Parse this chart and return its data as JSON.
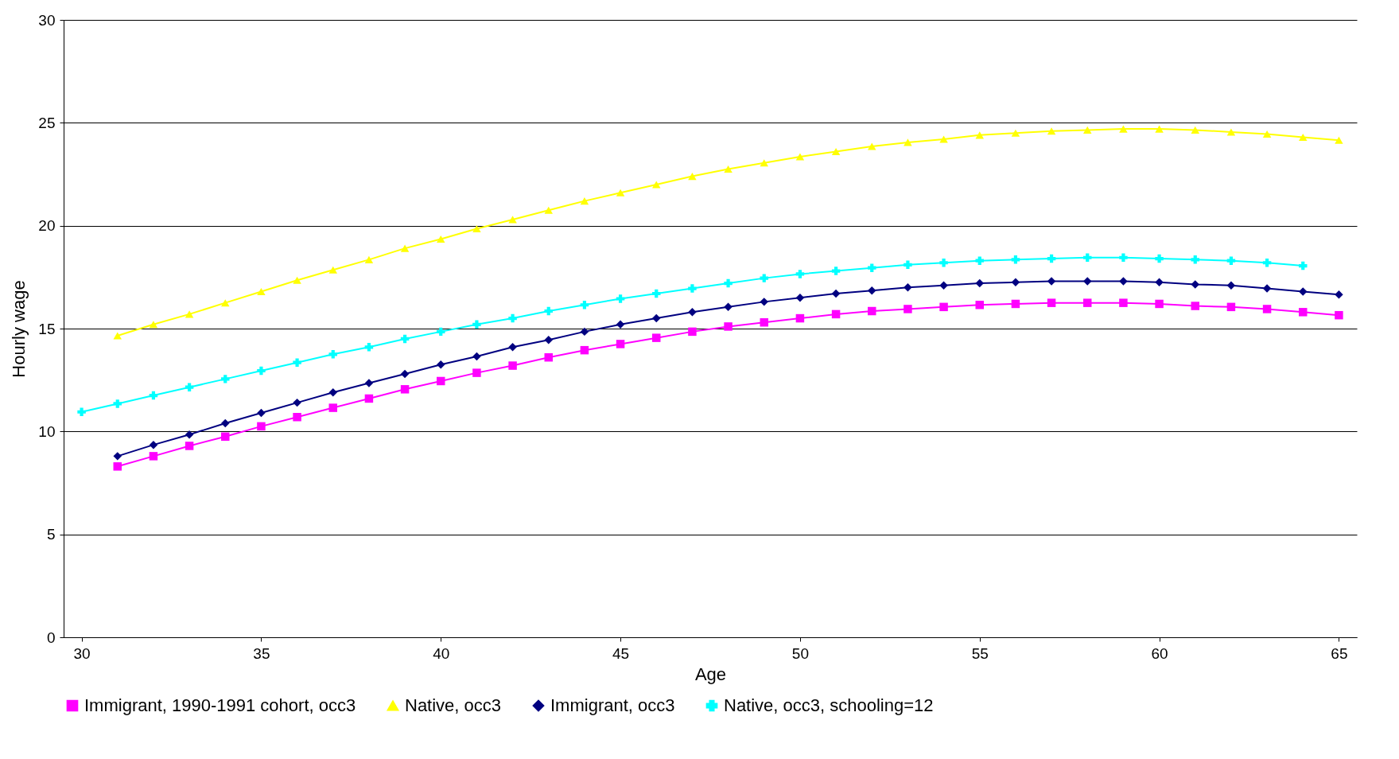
{
  "chart_data": {
    "type": "line",
    "xlabel": "Age",
    "ylabel": "Hourly wage",
    "x": [
      31,
      32,
      33,
      34,
      35,
      36,
      37,
      38,
      39,
      40,
      41,
      42,
      43,
      44,
      45,
      46,
      47,
      48,
      49,
      50,
      51,
      52,
      53,
      54,
      55,
      56,
      57,
      58,
      59,
      60,
      61,
      62,
      63,
      64,
      65
    ],
    "xlim": [
      29.5,
      65.5
    ],
    "xticks": [
      30,
      35,
      40,
      45,
      50,
      55,
      60,
      65
    ],
    "ylim": [
      0,
      30
    ],
    "yticks": [
      0,
      5,
      10,
      15,
      20,
      25,
      30
    ],
    "grid": "y",
    "legend": "bottom",
    "line_style": "solid",
    "series": [
      {
        "name": "Immigrant, 1990-1991 cohort, occ3",
        "color": "#ff00ff",
        "marker": "square",
        "values": [
          8.3,
          8.8,
          9.3,
          9.75,
          10.25,
          10.7,
          11.15,
          11.6,
          12.05,
          12.45,
          12.85,
          13.2,
          13.6,
          13.95,
          14.25,
          14.55,
          14.85,
          15.1,
          15.3,
          15.5,
          15.7,
          15.85,
          15.95,
          16.05,
          16.15,
          16.2,
          16.25,
          16.25,
          16.25,
          16.2,
          16.1,
          16.05,
          15.95,
          15.8,
          15.65
        ]
      },
      {
        "name": "Native, occ3",
        "color": "#ffff00",
        "marker": "triangle",
        "values": [
          14.65,
          15.2,
          15.7,
          16.25,
          16.8,
          17.35,
          17.85,
          18.35,
          18.9,
          19.35,
          19.85,
          20.3,
          20.75,
          21.2,
          21.6,
          22.0,
          22.4,
          22.75,
          23.05,
          23.35,
          23.6,
          23.85,
          24.05,
          24.2,
          24.4,
          24.5,
          24.6,
          24.65,
          24.7,
          24.7,
          24.65,
          24.55,
          24.45,
          24.3,
          24.15
        ]
      },
      {
        "name": "Immigrant, occ3",
        "color": "#000080",
        "marker": "diamond",
        "values": [
          8.8,
          9.35,
          9.85,
          10.4,
          10.9,
          11.4,
          11.9,
          12.35,
          12.8,
          13.25,
          13.65,
          14.1,
          14.45,
          14.85,
          15.2,
          15.5,
          15.8,
          16.05,
          16.3,
          16.5,
          16.7,
          16.85,
          17.0,
          17.1,
          17.2,
          17.25,
          17.3,
          17.3,
          17.3,
          17.25,
          17.15,
          17.1,
          16.95,
          16.8,
          16.65
        ]
      },
      {
        "name": "Native, occ3, schooling=12",
        "color": "#00ffff",
        "marker": "cross",
        "x": [
          30,
          31,
          32,
          33,
          34,
          35,
          36,
          37,
          38,
          39,
          40,
          41,
          42,
          43,
          44,
          45,
          46,
          47,
          48,
          49,
          50,
          51,
          52,
          53,
          54,
          55,
          56,
          57,
          58,
          59,
          60,
          61,
          62,
          63,
          64
        ],
        "values": [
          10.95,
          11.35,
          11.75,
          12.15,
          12.55,
          12.95,
          13.35,
          13.75,
          14.1,
          14.5,
          14.85,
          15.2,
          15.5,
          15.85,
          16.15,
          16.45,
          16.7,
          16.95,
          17.2,
          17.45,
          17.65,
          17.8,
          17.95,
          18.1,
          18.2,
          18.3,
          18.35,
          18.4,
          18.45,
          18.45,
          18.4,
          18.35,
          18.3,
          18.2,
          18.05
        ]
      }
    ]
  }
}
